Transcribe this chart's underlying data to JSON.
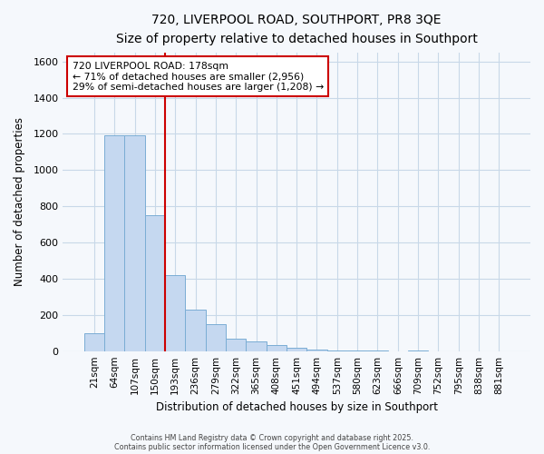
{
  "title": "720, LIVERPOOL ROAD, SOUTHPORT, PR8 3QE",
  "subtitle": "Size of property relative to detached houses in Southport",
  "xlabel": "Distribution of detached houses by size in Southport",
  "ylabel": "Number of detached properties",
  "categories": [
    "21sqm",
    "64sqm",
    "107sqm",
    "150sqm",
    "193sqm",
    "236sqm",
    "279sqm",
    "322sqm",
    "365sqm",
    "408sqm",
    "451sqm",
    "494sqm",
    "537sqm",
    "580sqm",
    "623sqm",
    "666sqm",
    "709sqm",
    "752sqm",
    "795sqm",
    "838sqm",
    "881sqm"
  ],
  "values": [
    100,
    1190,
    1190,
    750,
    420,
    230,
    150,
    70,
    55,
    35,
    20,
    10,
    5,
    3,
    1,
    0,
    1,
    0,
    0,
    0,
    0
  ],
  "bar_color": "#c5d8f0",
  "bar_edge_color": "#7aadd4",
  "highlight_color": "#cc0000",
  "property_label": "720 LIVERPOOL ROAD: 178sqm",
  "annotation_line1": "← 71% of detached houses are smaller (2,956)",
  "annotation_line2": "29% of semi-detached houses are larger (1,208) →",
  "annotation_box_color": "#ffffff",
  "annotation_box_edge": "#cc0000",
  "vline_x_index": 4.0,
  "ylim": [
    0,
    1650
  ],
  "yticks": [
    0,
    200,
    400,
    600,
    800,
    1000,
    1200,
    1400,
    1600
  ],
  "bg_color": "#f5f8fc",
  "plot_bg_color": "#f5f8fc",
  "grid_color": "#c8d8e8",
  "footer_line1": "Contains HM Land Registry data © Crown copyright and database right 2025.",
  "footer_line2": "Contains public sector information licensed under the Open Government Licence v3.0."
}
